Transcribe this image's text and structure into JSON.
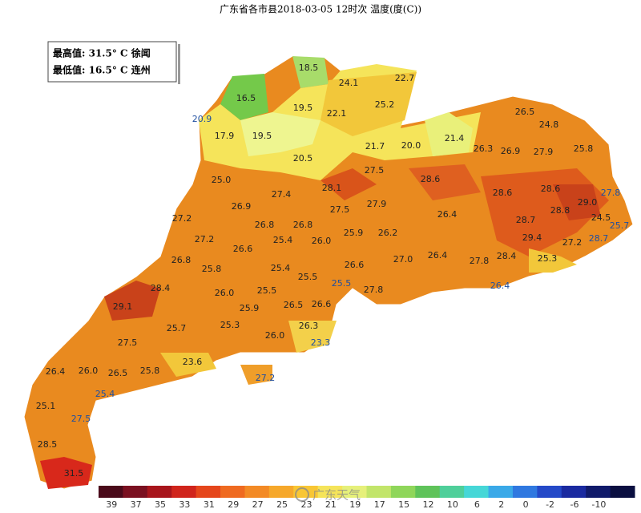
{
  "title": "广东省各市县2018-03-05 12时次 温度(度(C))",
  "info": {
    "max": "最高值: 31.5° C 徐闻",
    "min": "最低值: 16.5° C 连州"
  },
  "stations": [
    "18.5",
    "24.1",
    "22.7",
    "16.5",
    "19.5",
    "25.2",
    "20.9",
    "22.1",
    "26.5",
    "24.8",
    "17.9",
    "19.5",
    "21.7",
    "20.0",
    "21.4",
    "26.3",
    "26.9",
    "27.9",
    "25.8",
    "20.5",
    "25.0",
    "27.5",
    "28.6",
    "28.1",
    "27.4",
    "28.6",
    "28.6",
    "27.8",
    "29.0",
    "26.9",
    "27.5",
    "27.9",
    "26.4",
    "28.7",
    "28.8",
    "24.5",
    "25.7",
    "27.2",
    "26.8",
    "26.8",
    "25.9",
    "26.2",
    "25.4",
    "26.0",
    "27.2",
    "26.6",
    "29.4",
    "27.2",
    "28.7",
    "26.8",
    "25.8",
    "25.4",
    "26.6",
    "27.0",
    "26.4",
    "27.8",
    "28.4",
    "25.3",
    "25.5",
    "25.5",
    "26.4",
    "28.4",
    "26.0",
    "25.5",
    "27.8",
    "29.1",
    "25.9",
    "26.5",
    "26.6",
    "25.7",
    "25.3",
    "26.3",
    "26.0",
    "27.5",
    "23.3",
    "23.6",
    "26.4",
    "26.0",
    "26.5",
    "25.8",
    "27.2",
    "25.4",
    "25.1",
    "27.5",
    "28.5",
    "31.5"
  ],
  "legend": {
    "ticks": [
      "39",
      "37",
      "35",
      "33",
      "31",
      "29",
      "27",
      "25",
      "23",
      "21",
      "19",
      "17",
      "15",
      "12",
      "10",
      "6",
      "2",
      "0",
      "-2",
      "-6",
      "-10"
    ]
  },
  "watermark": "广东天气"
}
